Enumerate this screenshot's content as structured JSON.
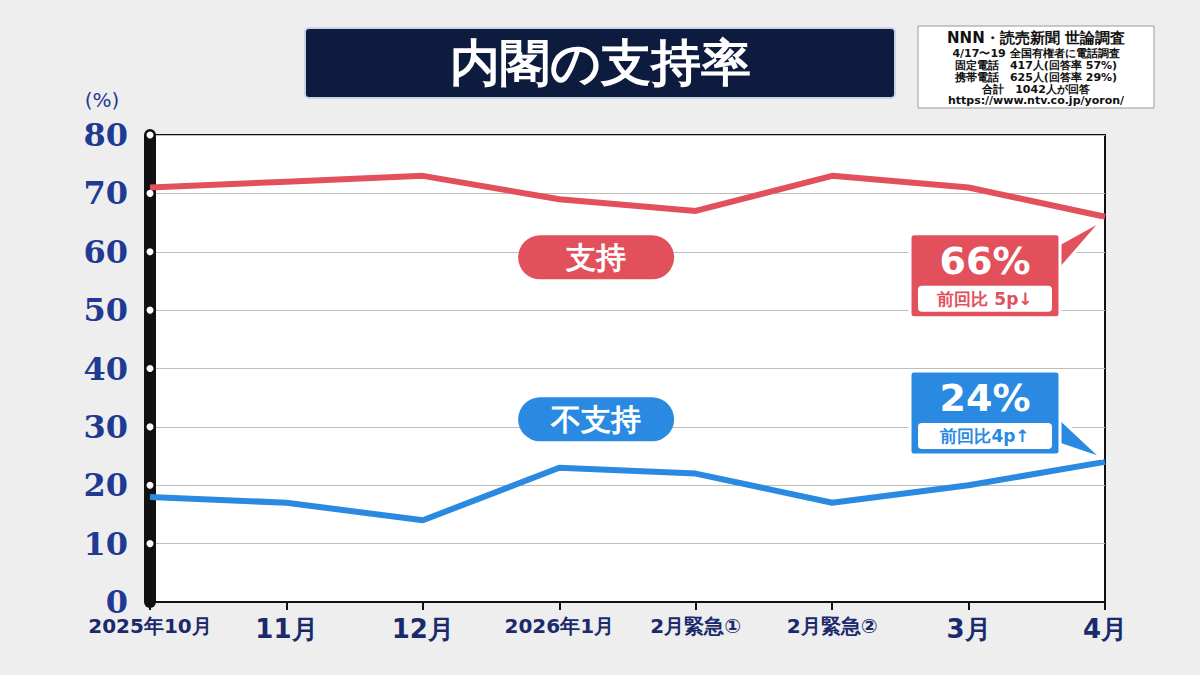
{
  "chart_data": {
    "type": "line",
    "title": "内閣の支持率",
    "ylabel": "(%)",
    "source": [
      "NNN・読売新聞 世論調査",
      "4/17〜19 全国有権者に電話調査",
      "固定電話　417人(回答率 57%)",
      "携帯電話　625人(回答率 29%)",
      "合計　1042人が回答",
      "https://www.ntv.co.jp/yoron/"
    ],
    "categories": [
      "2025年10月",
      "11月",
      "12月",
      "2026年1月",
      "2月緊急①",
      "2月緊急②",
      "3月",
      "4月"
    ],
    "series": [
      {
        "name": "支持",
        "color": "#e2505c",
        "values": [
          71,
          72,
          73,
          69,
          67,
          73,
          71,
          66
        ]
      },
      {
        "name": "不支持",
        "color": "#2a8ae2",
        "values": [
          18,
          17,
          14,
          23,
          22,
          17,
          20,
          24
        ]
      }
    ],
    "annotations": [
      {
        "series": "支持",
        "text": "66%",
        "change": "前回比 5p↓"
      },
      {
        "series": "不支持",
        "text": "24%",
        "change": "前回比4p↑"
      }
    ],
    "ylim": [
      0,
      80
    ],
    "yticks": [
      0,
      10,
      20,
      30,
      40,
      50,
      60,
      70,
      80
    ],
    "grid": true
  }
}
